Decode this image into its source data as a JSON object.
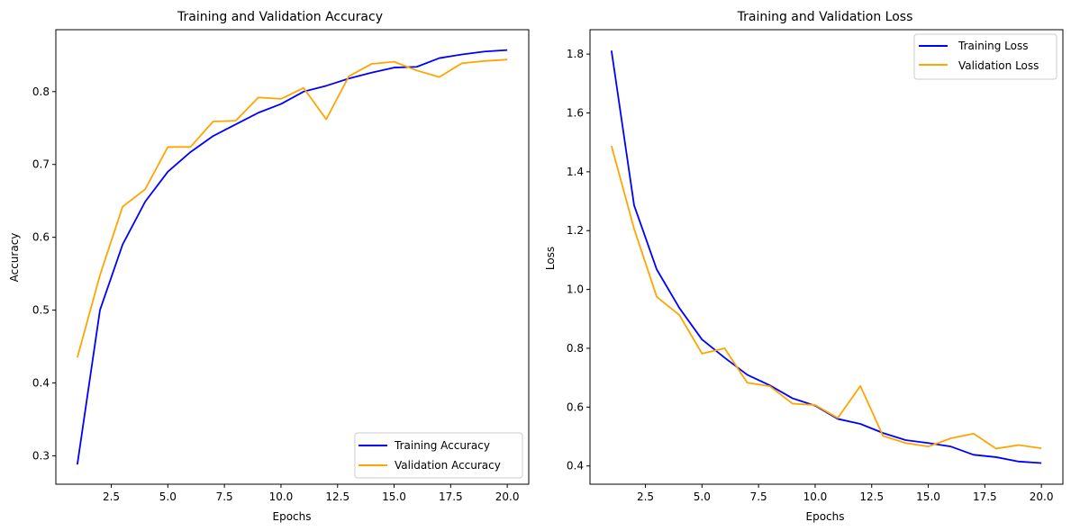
{
  "colors": {
    "training": "#0000ff",
    "validation": "#ffa500",
    "axes": "#000000",
    "legend_border": "#cccccc"
  },
  "chart_data": [
    {
      "type": "line",
      "title": "Training and Validation Accuracy",
      "xlabel": "Epochs",
      "ylabel": "Accuracy",
      "xlim": [
        0.05,
        20.95
      ],
      "ylim": [
        0.261,
        0.885
      ],
      "xticks": [
        2.5,
        5.0,
        7.5,
        10.0,
        12.5,
        15.0,
        17.5,
        20.0
      ],
      "xtick_labels": [
        "2.5",
        "5.0",
        "7.5",
        "10.0",
        "12.5",
        "15.0",
        "17.5",
        "20.0"
      ],
      "yticks": [
        0.3,
        0.4,
        0.5,
        0.6,
        0.7,
        0.8
      ],
      "ytick_labels": [
        "0.3",
        "0.4",
        "0.5",
        "0.6",
        "0.7",
        "0.8"
      ],
      "grid": false,
      "legend_position": "lower right",
      "x": [
        1,
        2,
        3,
        4,
        5,
        6,
        7,
        8,
        9,
        10,
        11,
        12,
        13,
        14,
        15,
        16,
        17,
        18,
        19,
        20
      ],
      "series": [
        {
          "name": "Training Accuracy",
          "color_key": "training",
          "values": [
            0.288,
            0.5,
            0.59,
            0.649,
            0.69,
            0.717,
            0.739,
            0.755,
            0.771,
            0.783,
            0.8,
            0.808,
            0.818,
            0.826,
            0.833,
            0.834,
            0.846,
            0.851,
            0.855,
            0.857
          ]
        },
        {
          "name": "Validation Accuracy",
          "color_key": "validation",
          "values": [
            0.435,
            0.548,
            0.642,
            0.666,
            0.724,
            0.724,
            0.759,
            0.76,
            0.792,
            0.79,
            0.805,
            0.762,
            0.821,
            0.838,
            0.841,
            0.829,
            0.82,
            0.839,
            0.842,
            0.844
          ]
        }
      ]
    },
    {
      "type": "line",
      "title": "Training and Validation Loss",
      "xlabel": "Epochs",
      "ylabel": "Loss",
      "xlim": [
        0.05,
        20.95
      ],
      "ylim": [
        0.338,
        1.883
      ],
      "xticks": [
        2.5,
        5.0,
        7.5,
        10.0,
        12.5,
        15.0,
        17.5,
        20.0
      ],
      "xtick_labels": [
        "2.5",
        "5.0",
        "7.5",
        "10.0",
        "12.5",
        "15.0",
        "17.5",
        "20.0"
      ],
      "yticks": [
        0.4,
        0.6,
        0.8,
        1.0,
        1.2,
        1.4,
        1.6,
        1.8
      ],
      "ytick_labels": [
        "0.4",
        "0.6",
        "0.8",
        "1.0",
        "1.2",
        "1.4",
        "1.6",
        "1.8"
      ],
      "grid": false,
      "legend_position": "upper right",
      "x": [
        1,
        2,
        3,
        4,
        5,
        6,
        7,
        8,
        9,
        10,
        11,
        12,
        13,
        14,
        15,
        16,
        17,
        18,
        19,
        20
      ],
      "series": [
        {
          "name": "Training Loss",
          "color_key": "training",
          "values": [
            1.812,
            1.286,
            1.068,
            0.937,
            0.83,
            0.768,
            0.71,
            0.674,
            0.63,
            0.605,
            0.56,
            0.543,
            0.512,
            0.488,
            0.478,
            0.466,
            0.438,
            0.43,
            0.415,
            0.41
          ]
        },
        {
          "name": "Validation Loss",
          "color_key": "validation",
          "values": [
            1.488,
            1.206,
            0.975,
            0.913,
            0.782,
            0.8,
            0.683,
            0.671,
            0.612,
            0.607,
            0.563,
            0.672,
            0.502,
            0.478,
            0.466,
            0.494,
            0.51,
            0.459,
            0.471,
            0.46
          ]
        }
      ]
    }
  ]
}
